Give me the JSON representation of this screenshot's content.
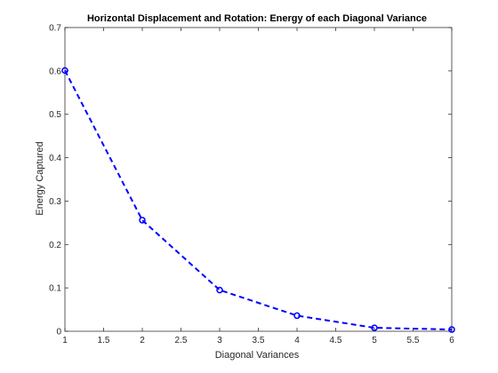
{
  "chart_data": {
    "type": "line",
    "title": "Horizontal Displacement and Rotation: Energy of each Diagonal Variance",
    "xlabel": "Diagonal Variances",
    "ylabel": "Energy Captured",
    "xlim": [
      1,
      6
    ],
    "ylim": [
      0,
      0.7
    ],
    "xticks": [
      1,
      1.5,
      2,
      2.5,
      3,
      3.5,
      4,
      4.5,
      5,
      5.5,
      6
    ],
    "xtick_labels": [
      "1",
      "1.5",
      "2",
      "2.5",
      "3",
      "3.5",
      "4",
      "4.5",
      "5",
      "5.5",
      "6"
    ],
    "yticks": [
      0,
      0.1,
      0.2,
      0.3,
      0.4,
      0.5,
      0.6,
      0.7
    ],
    "ytick_labels": [
      "0",
      "0.1",
      "0.2",
      "0.3",
      "0.4",
      "0.5",
      "0.6",
      "0.7"
    ],
    "grid": false,
    "series": [
      {
        "x": [
          1,
          2,
          3,
          4,
          5,
          6
        ],
        "y": [
          0.601,
          0.256,
          0.095,
          0.036,
          0.008,
          0.004
        ],
        "color": "#0000ff",
        "line_style": "dashed",
        "marker": "circle"
      }
    ]
  }
}
